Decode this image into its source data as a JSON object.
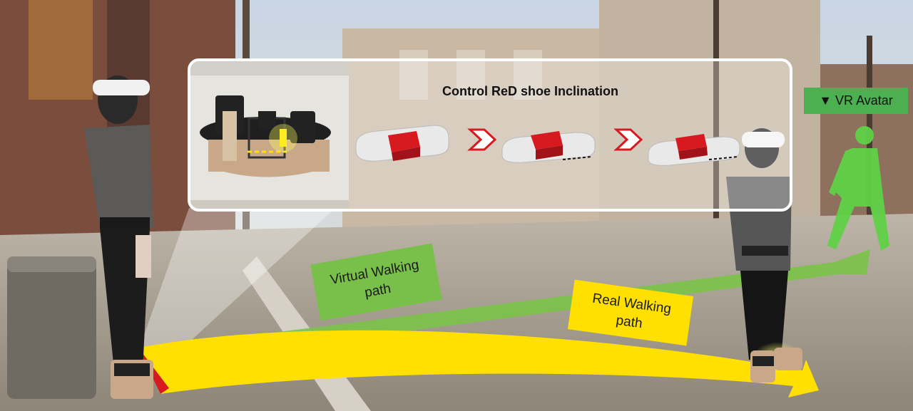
{
  "panel": {
    "title": "Control ReD shoe Inclination"
  },
  "tags": {
    "vr_avatar": "▼ VR Avatar",
    "virtual_line1": "Virtual Walking",
    "virtual_line2": "path",
    "real_line1": "Real Walking",
    "real_line2": "path"
  },
  "colors": {
    "virtual_path": "#7cc24b",
    "real_path": "#ffe000",
    "shoe_red": "#d71920",
    "avatar_green": "#5fd146",
    "panel_border": "#ffffff"
  }
}
